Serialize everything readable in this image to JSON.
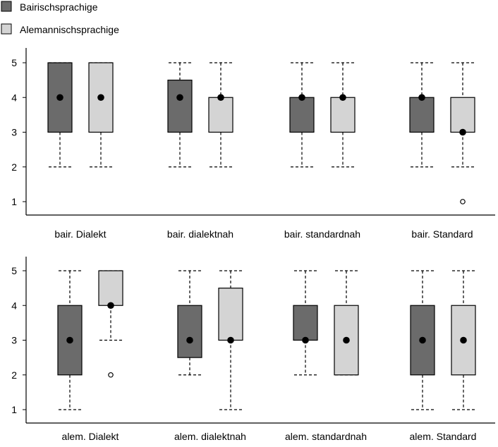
{
  "legend": {
    "position": "top-left",
    "items": [
      {
        "label": "Bairischsprachige",
        "color": "#6b6b6b"
      },
      {
        "label": "Alemannischsprachige",
        "color": "#d4d4d4"
      }
    ]
  },
  "colors": {
    "dark_box": "#6b6b6b",
    "light_box": "#d4d4d4",
    "stroke": "#000000"
  },
  "chart_data": [
    {
      "type": "boxplot",
      "ylim": [
        1,
        5
      ],
      "yticks": [
        1,
        2,
        3,
        4,
        5
      ],
      "categories": [
        "bair. Dialekt",
        "bair. dialektnah",
        "bair. standardnah",
        "bair. Standard"
      ],
      "series": [
        {
          "name": "Bairischsprachige",
          "boxes": [
            {
              "whisker_low": 2,
              "q1": 3,
              "median": 4,
              "q3": 5,
              "whisker_high": 5,
              "outliers": []
            },
            {
              "whisker_low": 2,
              "q1": 3,
              "median": 4,
              "q3": 4.5,
              "whisker_high": 5,
              "outliers": []
            },
            {
              "whisker_low": 2,
              "q1": 3,
              "median": 4,
              "q3": 4,
              "whisker_high": 5,
              "outliers": []
            },
            {
              "whisker_low": 2,
              "q1": 3,
              "median": 4,
              "q3": 4,
              "whisker_high": 5,
              "outliers": []
            }
          ]
        },
        {
          "name": "Alemannischsprachige",
          "boxes": [
            {
              "whisker_low": 2,
              "q1": 3,
              "median": 4,
              "q3": 5,
              "whisker_high": 5,
              "outliers": []
            },
            {
              "whisker_low": 2,
              "q1": 3,
              "median": 4,
              "q3": 4,
              "whisker_high": 5,
              "outliers": []
            },
            {
              "whisker_low": 2,
              "q1": 3,
              "median": 4,
              "q3": 4,
              "whisker_high": 5,
              "outliers": []
            },
            {
              "whisker_low": 2,
              "q1": 3,
              "median": 3,
              "q3": 4,
              "whisker_high": 5,
              "outliers": [
                1
              ]
            }
          ]
        }
      ]
    },
    {
      "type": "boxplot",
      "ylim": [
        1,
        5
      ],
      "yticks": [
        1,
        2,
        3,
        4,
        5
      ],
      "categories": [
        "alem. Dialekt",
        "alem. dialektnah",
        "alem. standardnah",
        "alem. Standard"
      ],
      "series": [
        {
          "name": "Bairischsprachige",
          "boxes": [
            {
              "whisker_low": 1,
              "q1": 2,
              "median": 3,
              "q3": 4,
              "whisker_high": 5,
              "outliers": []
            },
            {
              "whisker_low": 2,
              "q1": 2.5,
              "median": 3,
              "q3": 4,
              "whisker_high": 5,
              "outliers": []
            },
            {
              "whisker_low": 2,
              "q1": 3,
              "median": 3,
              "q3": 4,
              "whisker_high": 5,
              "outliers": []
            },
            {
              "whisker_low": 1,
              "q1": 2,
              "median": 3,
              "q3": 4,
              "whisker_high": 5,
              "outliers": []
            }
          ]
        },
        {
          "name": "Alemannischsprachige",
          "boxes": [
            {
              "whisker_low": 3,
              "q1": 4,
              "median": 4,
              "q3": 5,
              "whisker_high": 5,
              "outliers": [
                2
              ]
            },
            {
              "whisker_low": 1,
              "q1": 3,
              "median": 3,
              "q3": 4.5,
              "whisker_high": 5,
              "outliers": []
            },
            {
              "whisker_low": 2,
              "q1": 2,
              "median": 3,
              "q3": 4,
              "whisker_high": 5,
              "outliers": []
            },
            {
              "whisker_low": 1,
              "q1": 2,
              "median": 3,
              "q3": 4,
              "whisker_high": 5,
              "outliers": []
            }
          ]
        }
      ]
    }
  ]
}
